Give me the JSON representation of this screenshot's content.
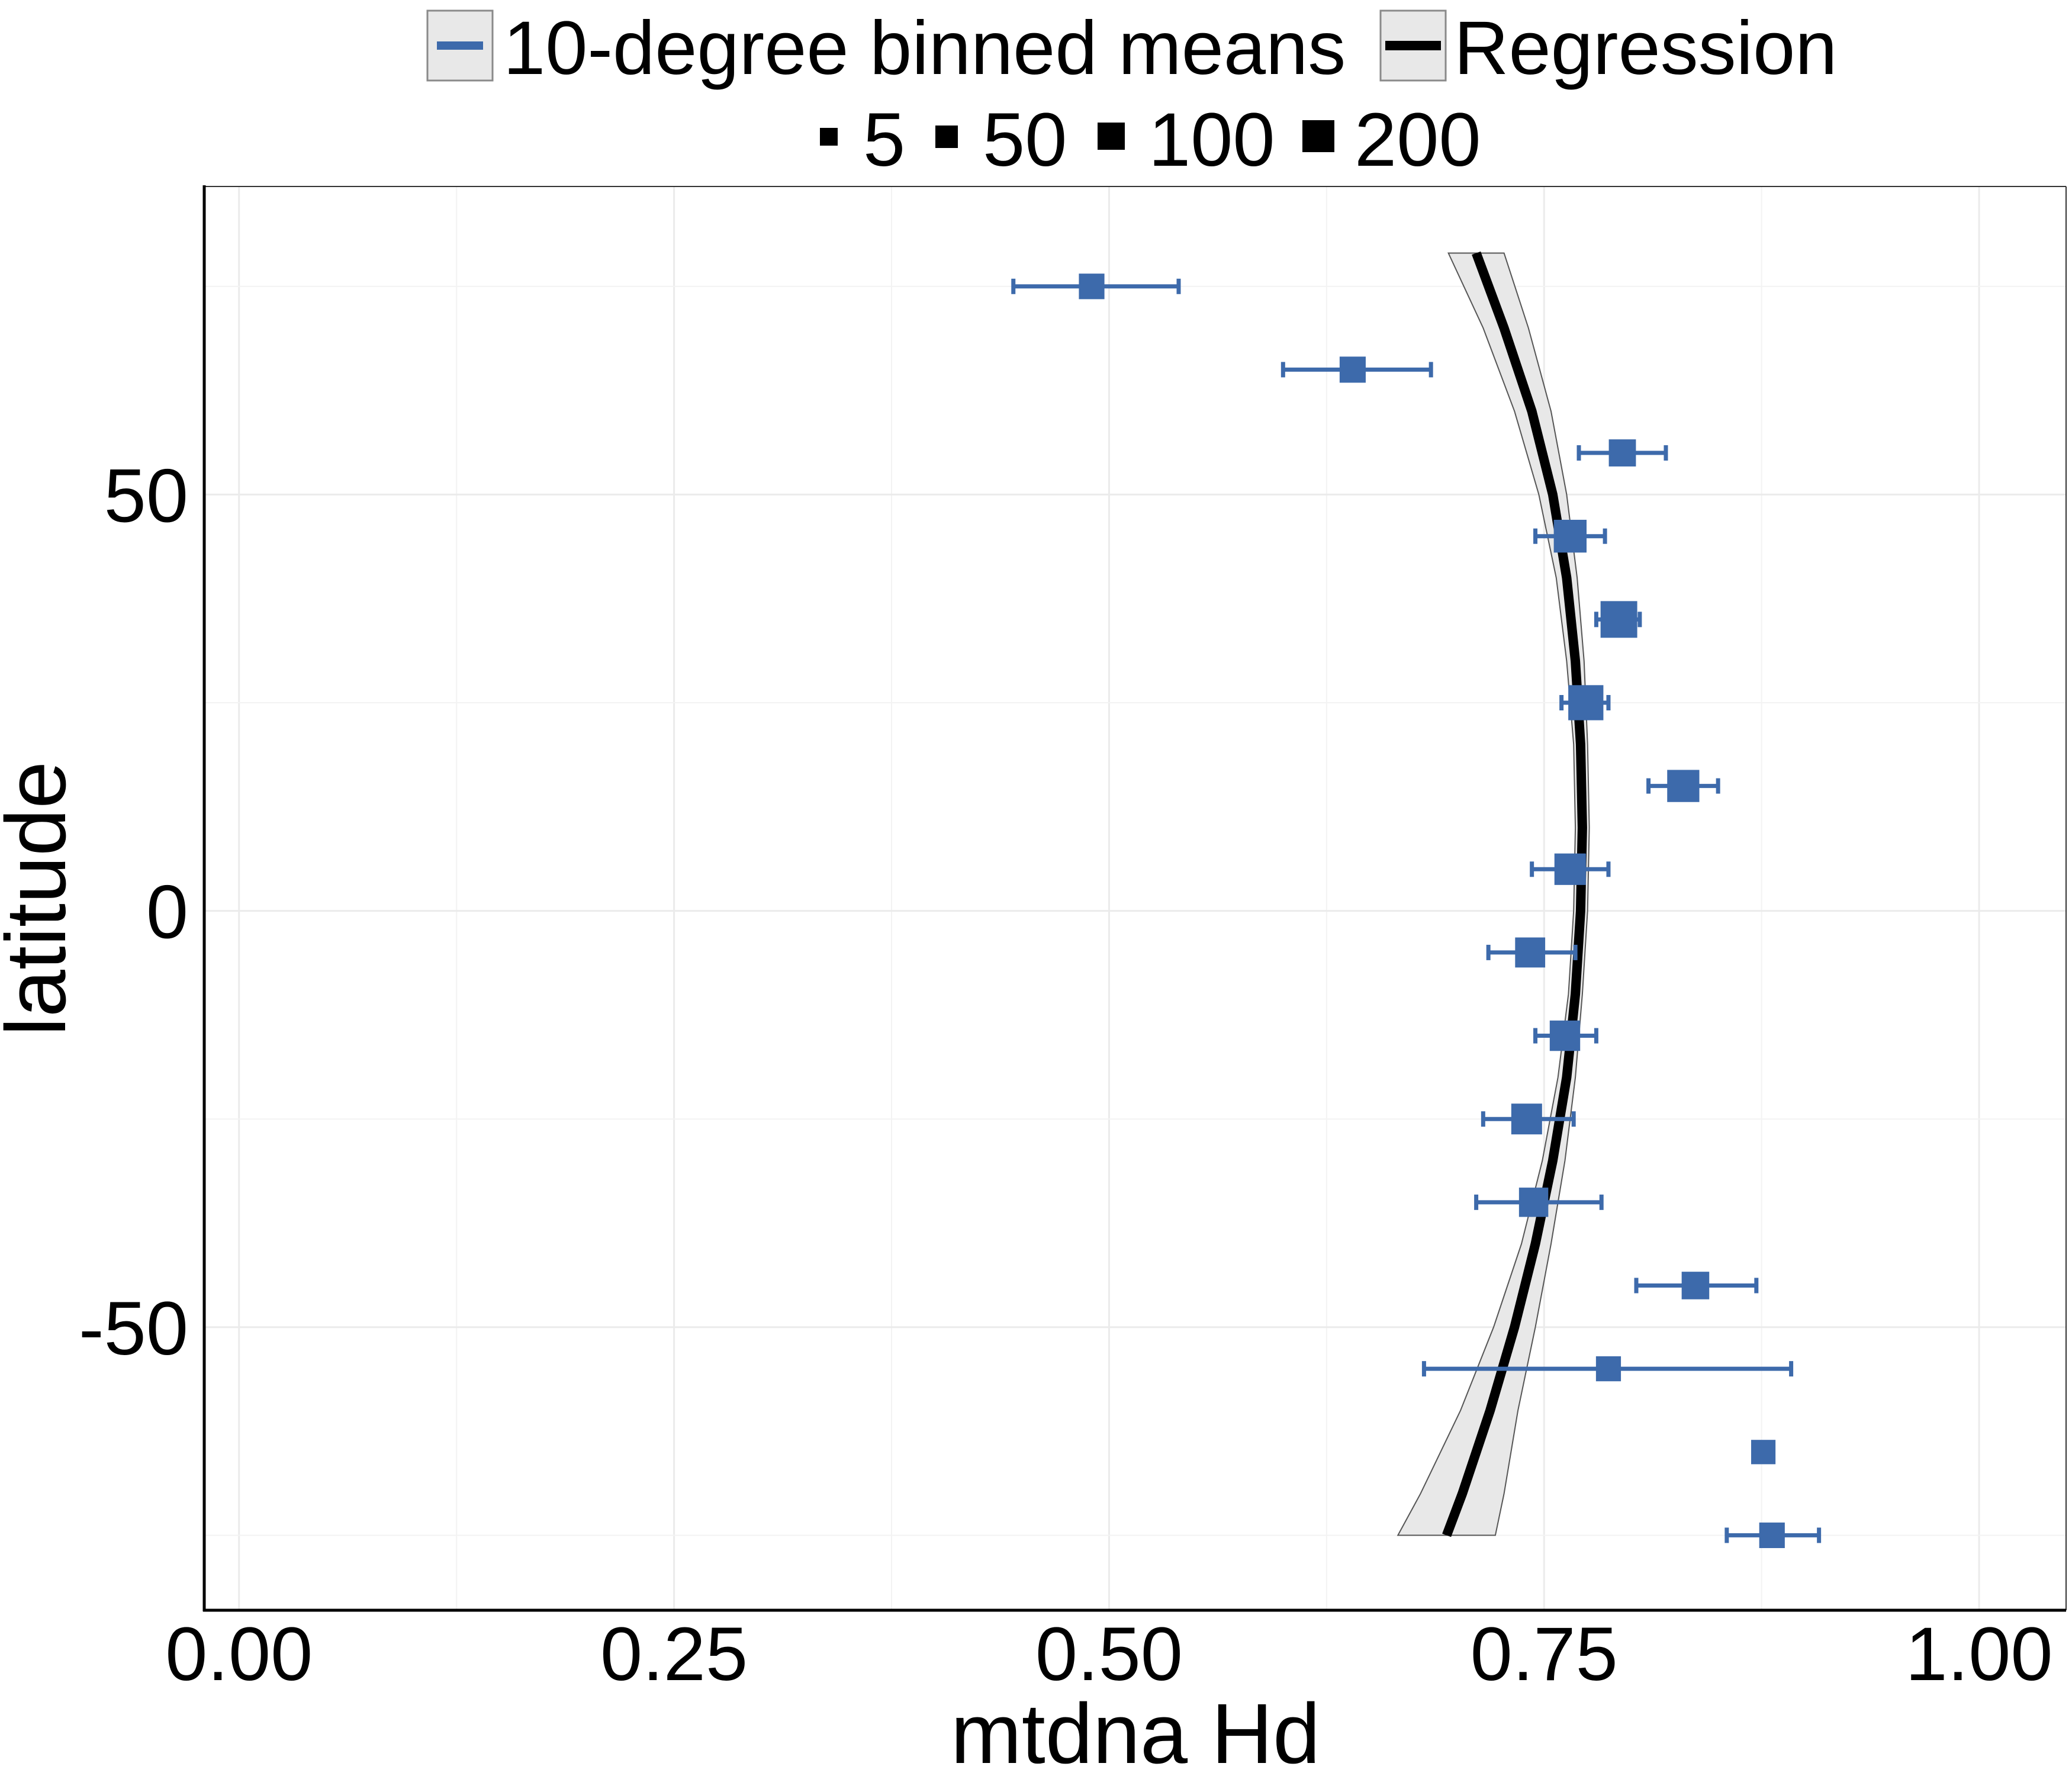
{
  "chart_data": {
    "type": "scatter",
    "title": "",
    "xlabel": "mtdna Hd",
    "ylabel": "latitude",
    "xlim": [
      -0.02,
      1.05
    ],
    "ylim": [
      -84,
      87
    ],
    "x_ticks": [
      "0.00",
      "0.25",
      "0.50",
      "0.75",
      "1.00"
    ],
    "y_ticks": [
      "-50",
      "0",
      "50"
    ],
    "grid": true,
    "colors": {
      "points": "#3d6aab",
      "regression": "#000000",
      "ribbon": "#e8e8e8",
      "grid": "#ebebeb"
    },
    "legend": {
      "position": "top",
      "series_items": [
        {
          "label": "10-degree binned means",
          "color": "#3d6aab"
        },
        {
          "label": "Regression",
          "color": "#000000"
        }
      ],
      "size_items": [
        {
          "label": "5",
          "value": 5
        },
        {
          "label": "50",
          "value": 50
        },
        {
          "label": "100",
          "value": 100
        },
        {
          "label": "200",
          "value": 200
        }
      ]
    },
    "series": [
      {
        "name": "10-degree binned means",
        "points": [
          {
            "y": 75,
            "x": 0.49,
            "xerr": [
              0.445,
              0.54
            ],
            "n": 40
          },
          {
            "y": 65,
            "x": 0.64,
            "xerr": [
              0.6,
              0.685
            ],
            "n": 45
          },
          {
            "y": 55,
            "x": 0.795,
            "xerr": [
              0.77,
              0.82
            ],
            "n": 55
          },
          {
            "y": 45,
            "x": 0.765,
            "xerr": [
              0.745,
              0.785
            ],
            "n": 130
          },
          {
            "y": 35,
            "x": 0.793,
            "xerr": [
              0.78,
              0.805
            ],
            "n": 200
          },
          {
            "y": 25,
            "x": 0.774,
            "xerr": [
              0.76,
              0.787
            ],
            "n": 170
          },
          {
            "y": 15,
            "x": 0.83,
            "xerr": [
              0.81,
              0.85
            ],
            "n": 120
          },
          {
            "y": 5,
            "x": 0.765,
            "xerr": [
              0.743,
              0.787
            ],
            "n": 110
          },
          {
            "y": -5,
            "x": 0.742,
            "xerr": [
              0.718,
              0.768
            ],
            "n": 90
          },
          {
            "y": -15,
            "x": 0.762,
            "xerr": [
              0.745,
              0.78
            ],
            "n": 95
          },
          {
            "y": -25,
            "x": 0.74,
            "xerr": [
              0.715,
              0.767
            ],
            "n": 100
          },
          {
            "y": -35,
            "x": 0.744,
            "xerr": [
              0.711,
              0.783
            ],
            "n": 80
          },
          {
            "y": -45,
            "x": 0.837,
            "xerr": [
              0.803,
              0.872
            ],
            "n": 60
          },
          {
            "y": -55,
            "x": 0.787,
            "xerr": [
              0.681,
              0.892
            ],
            "n": 35
          },
          {
            "y": -65,
            "x": 0.876,
            "n": 30
          },
          {
            "y": -75,
            "x": 0.881,
            "xerr": [
              0.855,
              0.908
            ],
            "n": 40
          }
        ]
      },
      {
        "name": "Regression",
        "line": [
          {
            "y": 79,
            "x": 0.711,
            "lo": 0.695,
            "hi": 0.727
          },
          {
            "y": 70,
            "x": 0.727,
            "lo": 0.715,
            "hi": 0.741
          },
          {
            "y": 60,
            "x": 0.743,
            "lo": 0.733,
            "hi": 0.754
          },
          {
            "y": 50,
            "x": 0.755,
            "lo": 0.747,
            "hi": 0.763
          },
          {
            "y": 40,
            "x": 0.763,
            "lo": 0.757,
            "hi": 0.769
          },
          {
            "y": 30,
            "x": 0.768,
            "lo": 0.763,
            "hi": 0.773
          },
          {
            "y": 20,
            "x": 0.771,
            "lo": 0.767,
            "hi": 0.775
          },
          {
            "y": 10,
            "x": 0.772,
            "lo": 0.768,
            "hi": 0.776
          },
          {
            "y": 0,
            "x": 0.771,
            "lo": 0.767,
            "hi": 0.775
          },
          {
            "y": -10,
            "x": 0.768,
            "lo": 0.764,
            "hi": 0.772
          },
          {
            "y": -20,
            "x": 0.763,
            "lo": 0.758,
            "hi": 0.768
          },
          {
            "y": -30,
            "x": 0.755,
            "lo": 0.749,
            "hi": 0.762
          },
          {
            "y": -40,
            "x": 0.745,
            "lo": 0.737,
            "hi": 0.754
          },
          {
            "y": -50,
            "x": 0.733,
            "lo": 0.721,
            "hi": 0.745
          },
          {
            "y": -60,
            "x": 0.719,
            "lo": 0.702,
            "hi": 0.735
          },
          {
            "y": -70,
            "x": 0.703,
            "lo": 0.679,
            "hi": 0.727
          },
          {
            "y": -75,
            "x": 0.694,
            "lo": 0.666,
            "hi": 0.722
          }
        ]
      }
    ]
  }
}
